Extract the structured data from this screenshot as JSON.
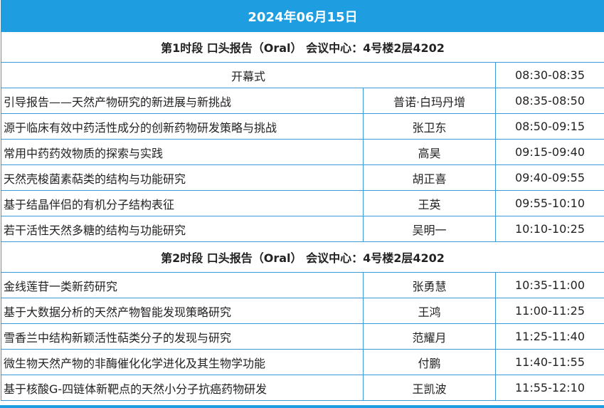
{
  "date": "2024年06月15日",
  "accent_color": "#1e9de0",
  "sessions": [
    {
      "title": "第1时段 口头报告（Oral） 会议中心：4号楼2层4202",
      "opening": {
        "title": "开幕式",
        "time": "08:30-08:35"
      },
      "talks": [
        {
          "title": "引导报告——天然产物研究的新进展与新挑战",
          "speaker": "普诺·白玛丹增",
          "time": "08:35-08:50"
        },
        {
          "title": "源于临床有效中药活性成分的创新药物研发策略与挑战",
          "speaker": "张卫东",
          "time": "08:50-09:15"
        },
        {
          "title": "常用中药药效物质的探索与实践",
          "speaker": "高昊",
          "time": "09:15-09:40"
        },
        {
          "title": "天然壳梭菌素萜类的结构与功能研究",
          "speaker": "胡正喜",
          "time": "09:40-09:55"
        },
        {
          "title": "基于结晶伴侣的有机分子结构表征",
          "speaker": "王英",
          "time": "09:55-10:10"
        },
        {
          "title": "若干活性天然多糖的结构与功能研究",
          "speaker": "吴明一",
          "time": "10:10-10:25"
        }
      ]
    },
    {
      "title": "第2时段 口头报告（Oral） 会议中心：4号楼2层4202",
      "talks": [
        {
          "title": "金线莲苷一类新药研究",
          "speaker": "张勇慧",
          "time": "10:35-11:00"
        },
        {
          "title": "基于大数据分析的天然产物智能发现策略研究",
          "speaker": "王鸿",
          "time": "11:00-11:25"
        },
        {
          "title": "雪香兰中结构新颖活性萜类分子的发现与研究",
          "speaker": "范耀月",
          "time": "11:25-11:40"
        },
        {
          "title": "微生物天然产物的非酶催化化学进化及其生物学功能",
          "speaker": "付鹏",
          "time": "11:40-11:55"
        },
        {
          "title": "基于核酸G-四链体新靶点的天然小分子抗癌药物研发",
          "speaker": "王凯波",
          "time": "11:55-12:10"
        }
      ]
    }
  ]
}
